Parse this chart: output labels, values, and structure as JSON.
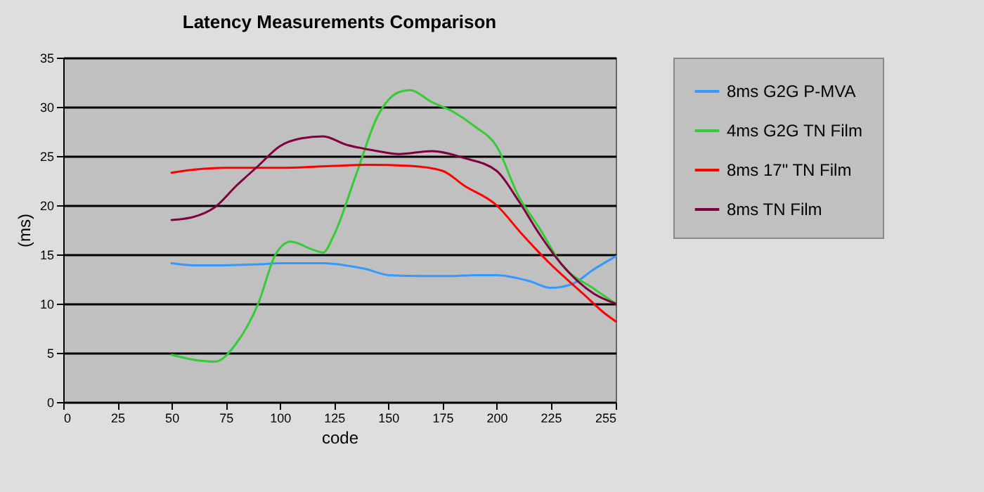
{
  "chart_data": {
    "type": "line",
    "title": "Latency Measurements Comparison",
    "xlabel": "code",
    "ylabel": "(ms)",
    "xlim": [
      0,
      255
    ],
    "xticks": [
      0,
      25,
      50,
      75,
      100,
      125,
      150,
      175,
      200,
      225,
      255
    ],
    "ylim": [
      0,
      35
    ],
    "yticks": [
      0,
      5,
      10,
      15,
      20,
      25,
      30,
      35
    ],
    "grid": "y",
    "legend": "right",
    "marker": "none",
    "line_style": "solid",
    "series": [
      {
        "name": "8ms G2G P-MVA",
        "color": "#3399ff",
        "x": [
          50,
          60,
          75,
          90,
          100,
          110,
          120,
          130,
          140,
          150,
          165,
          180,
          190,
          200,
          215,
          225,
          235,
          245,
          255
        ],
        "values": [
          14.1,
          13.9,
          13.9,
          14,
          14.1,
          14.1,
          14.1,
          13.9,
          13.5,
          12.9,
          12.8,
          12.8,
          12.9,
          12.9,
          12.3,
          11.6,
          12,
          13.5,
          14.8
        ]
      },
      {
        "name": "4ms G2G TN Film",
        "color": "#33cc33",
        "x": [
          50,
          60,
          70,
          80,
          90,
          98,
          105,
          115,
          120,
          125,
          135,
          145,
          155,
          160,
          170,
          180,
          190,
          200,
          210,
          220,
          230,
          245,
          255
        ],
        "values": [
          4.8,
          4.3,
          4.1,
          6,
          10,
          15,
          16.3,
          15.5,
          15.2,
          17,
          23,
          29,
          31.5,
          31.7,
          30.5,
          29.5,
          28,
          26,
          21,
          17.6,
          14,
          11.5,
          10
        ]
      },
      {
        "name": "8ms 17\" TN Film",
        "color": "#ff0000",
        "x": [
          50,
          60,
          75,
          100,
          125,
          140,
          160,
          175,
          185,
          200,
          212,
          225,
          240,
          250,
          255
        ],
        "values": [
          23.3,
          23.6,
          23.8,
          23.8,
          24,
          24.1,
          24,
          23.5,
          22,
          20,
          17,
          14,
          11,
          9,
          8.2
        ]
      },
      {
        "name": "8ms TN Film",
        "color": "#800040",
        "x": [
          50,
          60,
          70,
          80,
          90,
          100,
          110,
          120,
          130,
          145,
          155,
          170,
          185,
          200,
          210,
          220,
          230,
          245,
          255
        ],
        "values": [
          18.5,
          18.8,
          19.8,
          22,
          24,
          26,
          26.8,
          27,
          26.2,
          25.5,
          25.2,
          25.5,
          24.8,
          23.5,
          20.5,
          17,
          14,
          11,
          10
        ]
      }
    ]
  }
}
